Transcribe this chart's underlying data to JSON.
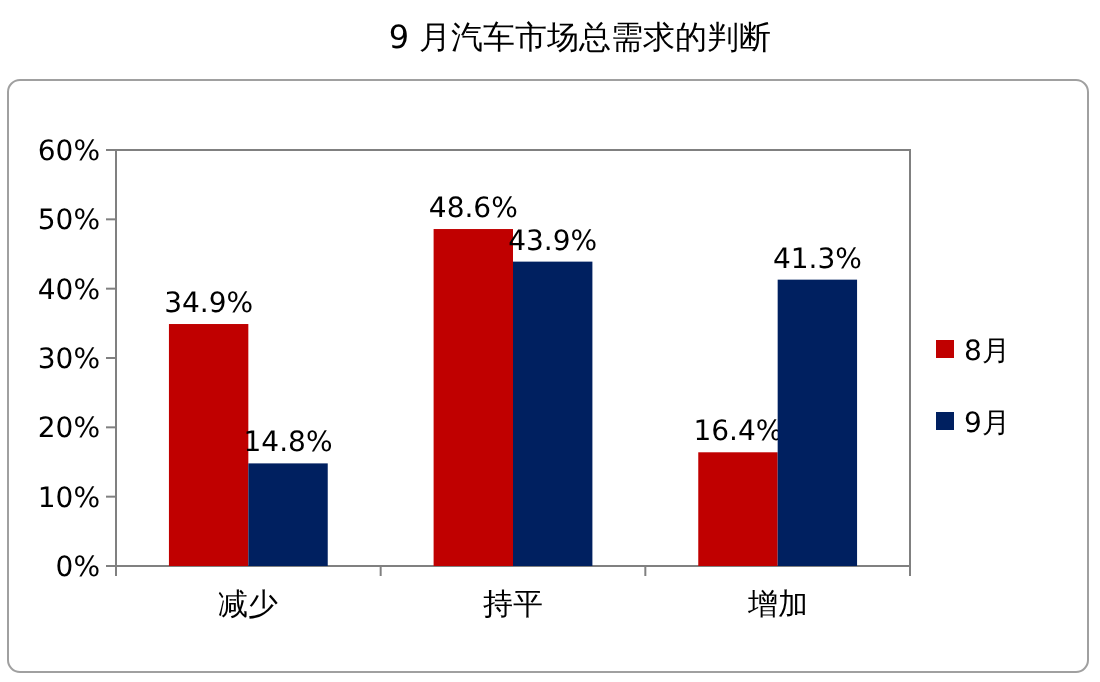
{
  "chart_data": {
    "type": "bar",
    "title": "9 月汽车市场总需求的判断",
    "categories": [
      "减少",
      "持平",
      "增加"
    ],
    "series": [
      {
        "name": "8月",
        "color": "#c00000",
        "values": [
          34.9,
          48.6,
          16.4
        ],
        "value_labels": [
          "34.9%",
          "48.6%",
          "16.4%"
        ]
      },
      {
        "name": "9月",
        "color": "#002060",
        "values": [
          14.8,
          43.9,
          41.3
        ],
        "value_labels": [
          "14.8%",
          "43.9%",
          "41.3%"
        ]
      }
    ],
    "ylim": [
      0,
      60
    ],
    "yticks": [
      {
        "value": 0,
        "label": "0%"
      },
      {
        "value": 10,
        "label": "10%"
      },
      {
        "value": 20,
        "label": "20%"
      },
      {
        "value": 30,
        "label": "30%"
      },
      {
        "value": 40,
        "label": "40%"
      },
      {
        "value": 50,
        "label": "50%"
      },
      {
        "value": 60,
        "label": "60%"
      }
    ],
    "grid": false,
    "legend": "right"
  }
}
